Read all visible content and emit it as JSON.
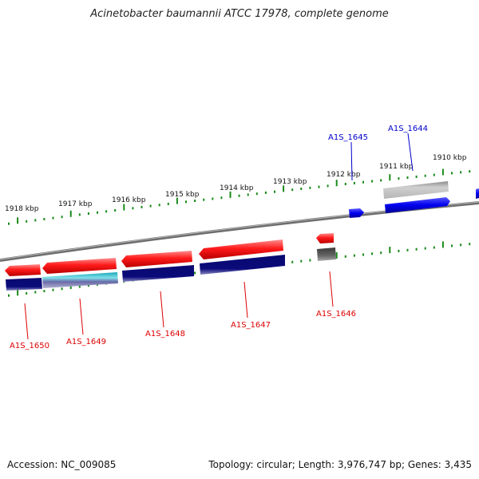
{
  "title": "Acinetobacter baumannii ATCC 17978, complete genome",
  "footer": {
    "accession": "Accession: NC_009085",
    "summary": "Topology: circular; Length: 3,976,747 bp; Genes: 3,435"
  },
  "ticks": [
    {
      "label": "1918 kbp"
    },
    {
      "label": "1917 kbp"
    },
    {
      "label": "1916 kbp"
    },
    {
      "label": "1915 kbp"
    },
    {
      "label": "1914 kbp"
    },
    {
      "label": "1913 kbp"
    },
    {
      "label": "1912 kbp"
    },
    {
      "label": "1911 kbp"
    },
    {
      "label": "1910 kbp"
    }
  ],
  "genes_forward": [
    {
      "label": "A1S_1645"
    },
    {
      "label": "A1S_1644"
    }
  ],
  "genes_reverse": [
    {
      "label": "A1S_1646"
    },
    {
      "label": "A1S_1647"
    },
    {
      "label": "A1S_1648"
    },
    {
      "label": "A1S_1649"
    },
    {
      "label": "A1S_1650"
    }
  ],
  "colors": {
    "forward_label": "#0000cc",
    "reverse_label": "#dd0000",
    "gene_red": "#ff1a1a",
    "cds_blue": "#0000ee",
    "cds_navy": "#0a0a7a",
    "pseudo_gray": "#b0b0b0",
    "dark_gray": "#555555",
    "tick_green": "#1a8a1a",
    "backbone": "#7a7a7a",
    "rna_cyan": "#2bb7c8"
  }
}
